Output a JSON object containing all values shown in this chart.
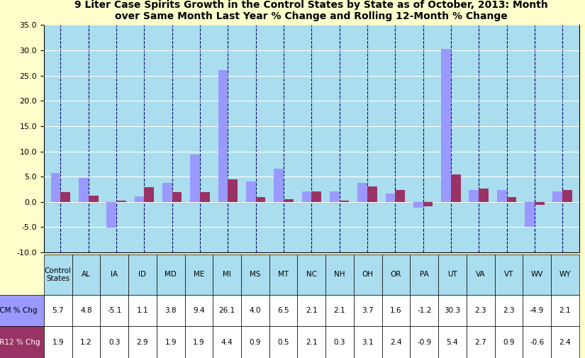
{
  "title": "9 Liter Case Spirits Growth in the Control States by State as of October, 2013: Month\nover Same Month Last Year % Change and Rolling 12-Month % Change",
  "states": [
    "Control\nStates",
    "AL",
    "IA",
    "ID",
    "MD",
    "ME",
    "MI",
    "MS",
    "MT",
    "NC",
    "NH",
    "OH",
    "OR",
    "PA",
    "UT",
    "VA",
    "VT",
    "WV",
    "WY"
  ],
  "cm_values": [
    5.7,
    4.8,
    -5.1,
    1.1,
    3.8,
    9.4,
    26.1,
    4.0,
    6.5,
    2.1,
    2.1,
    3.7,
    1.6,
    -1.2,
    30.3,
    2.3,
    2.3,
    -4.9,
    2.1
  ],
  "r12_values": [
    1.9,
    1.2,
    0.3,
    2.9,
    1.9,
    1.9,
    4.4,
    0.9,
    0.5,
    2.1,
    0.3,
    3.1,
    2.4,
    -0.9,
    5.4,
    2.7,
    0.9,
    -0.6,
    2.4
  ],
  "cm_color": "#9999FF",
  "r12_color": "#993366",
  "background_color": "#FFFFCC",
  "plot_bg_color": "#AADDEE",
  "ylim": [
    -10.0,
    35.0
  ],
  "yticks": [
    -10.0,
    -5.0,
    0.0,
    5.0,
    10.0,
    15.0,
    20.0,
    25.0,
    30.0,
    35.0
  ],
  "legend_cm_label": "CM % Chg",
  "legend_r12_label": "R12 % Chg",
  "grid_color": "#000066",
  "bar_width": 0.35,
  "table_header_state_bg": "#AADDEE",
  "table_cm_row_bg": "#FFFFFF",
  "table_r12_row_bg": "#FFFFFF"
}
